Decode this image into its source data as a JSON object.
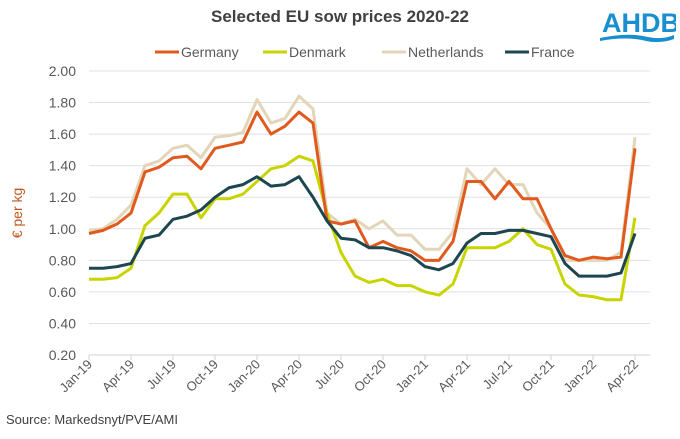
{
  "logo_text": "AHDB",
  "source": "Source: Markedsnyt/PVE/AMI",
  "colors": {
    "Germany": "#e05a1e",
    "Denmark": "#c8d400",
    "Netherlands": "#e2d5b8",
    "France": "#1e4650",
    "logo": "#1a8fd0"
  },
  "chart_data": {
    "type": "line",
    "title": "Selected EU sow prices 2020-22",
    "xlabel": "",
    "ylabel": "€ per kg",
    "ylim": [
      0.2,
      2.0
    ],
    "yticks": [
      "0.20",
      "0.40",
      "0.60",
      "0.80",
      "1.00",
      "1.20",
      "1.40",
      "1.60",
      "1.80",
      "2.00"
    ],
    "grid": true,
    "legend": "top",
    "x": [
      "Jan-19",
      "Feb-19",
      "Mar-19",
      "Apr-19",
      "May-19",
      "Jun-19",
      "Jul-19",
      "Aug-19",
      "Sep-19",
      "Oct-19",
      "Nov-19",
      "Dec-19",
      "Jan-20",
      "Feb-20",
      "Mar-20",
      "Apr-20",
      "May-20",
      "Jun-20",
      "Jul-20",
      "Aug-20",
      "Sep-20",
      "Oct-20",
      "Nov-20",
      "Dec-20",
      "Jan-21",
      "Feb-21",
      "Mar-21",
      "Apr-21",
      "May-21",
      "Jun-21",
      "Jul-21",
      "Aug-21",
      "Sep-21",
      "Oct-21",
      "Nov-21",
      "Dec-21",
      "Jan-22",
      "Feb-22",
      "Mar-22",
      "Apr-22"
    ],
    "xticks": [
      "Jan-19",
      "Apr-19",
      "Jul-19",
      "Oct-19",
      "Jan-20",
      "Apr-20",
      "Jul-20",
      "Oct-20",
      "Jan-21",
      "Apr-21",
      "Jul-21",
      "Oct-21",
      "Jan-22",
      "Apr-22"
    ],
    "series": [
      {
        "name": "Germany",
        "values": [
          0.97,
          0.99,
          1.03,
          1.1,
          1.36,
          1.39,
          1.45,
          1.46,
          1.38,
          1.51,
          1.53,
          1.55,
          1.74,
          1.6,
          1.65,
          1.74,
          1.67,
          1.05,
          1.03,
          1.05,
          0.88,
          0.92,
          0.88,
          0.86,
          0.8,
          0.8,
          0.92,
          1.3,
          1.3,
          1.19,
          1.3,
          1.19,
          1.19,
          1.0,
          0.83,
          0.8,
          0.82,
          0.81,
          0.82,
          1.51
        ]
      },
      {
        "name": "Denmark",
        "values": [
          0.68,
          0.68,
          0.69,
          0.75,
          1.02,
          1.1,
          1.22,
          1.22,
          1.07,
          1.19,
          1.19,
          1.22,
          1.3,
          1.38,
          1.4,
          1.46,
          1.43,
          1.1,
          0.85,
          0.7,
          0.66,
          0.68,
          0.64,
          0.64,
          0.6,
          0.58,
          0.65,
          0.88,
          0.88,
          0.88,
          0.92,
          1.0,
          0.9,
          0.87,
          0.65,
          0.58,
          0.57,
          0.55,
          0.55,
          1.07
        ]
      },
      {
        "name": "Netherlands",
        "values": [
          0.99,
          1.0,
          1.06,
          1.15,
          1.4,
          1.43,
          1.51,
          1.53,
          1.45,
          1.58,
          1.59,
          1.61,
          1.82,
          1.67,
          1.7,
          1.84,
          1.76,
          1.1,
          1.03,
          1.06,
          1.0,
          1.05,
          0.96,
          0.96,
          0.87,
          0.87,
          0.98,
          1.38,
          1.28,
          1.38,
          1.28,
          1.28,
          1.1,
          1.0,
          0.8,
          0.8,
          0.8,
          0.8,
          0.85,
          1.58
        ]
      },
      {
        "name": "France",
        "values": [
          0.75,
          0.75,
          0.76,
          0.78,
          0.94,
          0.96,
          1.06,
          1.08,
          1.12,
          1.2,
          1.26,
          1.28,
          1.33,
          1.27,
          1.28,
          1.33,
          1.2,
          1.05,
          0.94,
          0.93,
          0.88,
          0.88,
          0.86,
          0.83,
          0.76,
          0.74,
          0.78,
          0.91,
          0.97,
          0.97,
          0.99,
          0.99,
          0.97,
          0.95,
          0.78,
          0.7,
          0.7,
          0.7,
          0.72,
          0.97
        ]
      }
    ]
  }
}
